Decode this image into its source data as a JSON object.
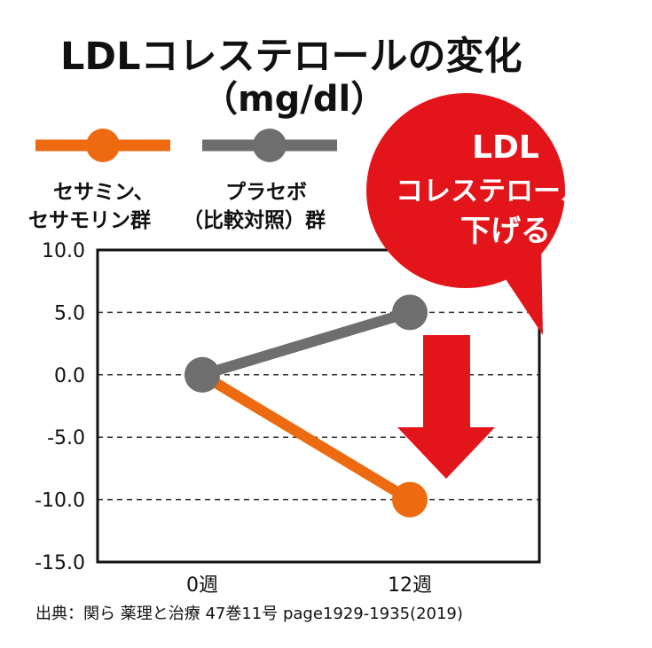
{
  "title": {
    "line1": "LDLコレステロールの変化",
    "line2": "（mg/dl）"
  },
  "legend": [
    {
      "label_line1": "セサミン、",
      "label_line2": "セサモリン群",
      "color": "#ee6a10"
    },
    {
      "label_line1": "プラセボ",
      "label_line2": "（比較対照）群",
      "color": "#6e6e6e"
    }
  ],
  "callout": {
    "line1": "LDL",
    "line2": "コレステロールを",
    "line3": "下げる",
    "color": "#e4141b"
  },
  "chart_data": {
    "type": "line",
    "categories": [
      "0週",
      "12週"
    ],
    "series": [
      {
        "name": "プラセボ（比較対照）群",
        "values": [
          0.0,
          5.0
        ],
        "color": "#6e6e6e"
      },
      {
        "name": "セサミン、セサモリン群",
        "values": [
          0.0,
          -10.0
        ],
        "color": "#ee6a10"
      }
    ],
    "ylim": [
      -15.0,
      10.0
    ],
    "yticks": [
      "10.0",
      "5.0",
      "0.0",
      "-5.0",
      "-10.0",
      "-15.0"
    ],
    "grid": "dashed-horizontal"
  },
  "source": "出典：関ら 薬理と治療 47巻11号 page1929-1935(2019)"
}
